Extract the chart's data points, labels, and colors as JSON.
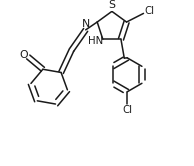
{
  "bg_color": "#ffffff",
  "line_color": "#1a1a1a",
  "line_width": 1.1,
  "font_size": 6.8,
  "fig_width": 1.94,
  "fig_height": 1.66,
  "dpi": 100,
  "xlim": [
    0.0,
    5.8
  ],
  "ylim": [
    0.0,
    5.0
  ]
}
